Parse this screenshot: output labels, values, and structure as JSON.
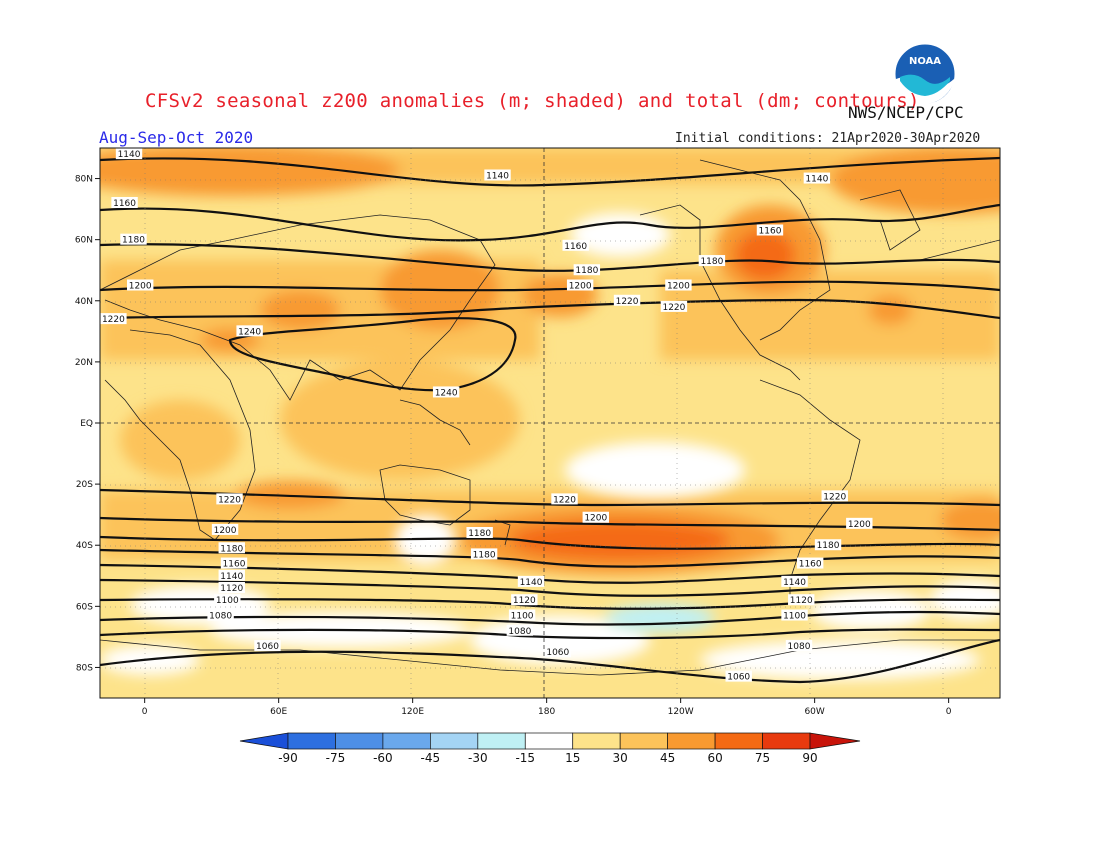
{
  "header": {
    "title": "CFSv2 seasonal z200 anomalies (m; shaded) and total (dm; contours)",
    "agency": "NWS/NCEP/CPC",
    "season": "Aug-Sep-Oct 2020",
    "initial_conditions": "Initial conditions: 21Apr2020-30Apr2020",
    "logo_text": "NOAA"
  },
  "axes": {
    "lat_labels": [
      "80N",
      "60N",
      "40N",
      "20N",
      "EQ",
      "20S",
      "40S",
      "60S",
      "80S"
    ],
    "lon_labels": [
      "0",
      "60E",
      "120E",
      "180",
      "120W",
      "60W",
      "0"
    ]
  },
  "colorbar": {
    "ticks": [
      "-90",
      "-75",
      "-60",
      "-45",
      "-30",
      "-15",
      "15",
      "30",
      "45",
      "60",
      "75",
      "90"
    ],
    "colors": [
      "#1a4fd8",
      "#2d6fe0",
      "#4e8fe6",
      "#6aa8ec",
      "#a4d4f4",
      "#bff0f4",
      "#ffffff",
      "#fde38a",
      "#fcc35a",
      "#f89a30",
      "#f46a14",
      "#e83a0e",
      "#c8140a"
    ]
  },
  "contours": [
    {
      "label": "1140",
      "positions": [
        {
          "lon": -7,
          "lat": 88
        },
        {
          "lon": 158,
          "lat": 81
        },
        {
          "lon": -59,
          "lat": 80
        }
      ]
    },
    {
      "label": "1160",
      "positions": [
        {
          "lon": -9,
          "lat": 72
        },
        {
          "lon": -167,
          "lat": 58
        },
        {
          "lon": -80,
          "lat": 63
        }
      ]
    },
    {
      "label": "1180",
      "positions": [
        {
          "lon": -5,
          "lat": 60
        },
        {
          "lon": -162,
          "lat": 50
        },
        {
          "lon": -106,
          "lat": 53
        }
      ]
    },
    {
      "label": "1200",
      "positions": [
        {
          "lon": -2,
          "lat": 45
        },
        {
          "lon": -165,
          "lat": 45
        },
        {
          "lon": -121,
          "lat": 45
        }
      ]
    },
    {
      "label": "1220",
      "positions": [
        {
          "lon": -14,
          "lat": 34
        },
        {
          "lon": -144,
          "lat": 40
        },
        {
          "lon": -123,
          "lat": 38
        }
      ]
    },
    {
      "label": "1240",
      "positions": [
        {
          "lon": 47,
          "lat": 30
        },
        {
          "lon": 135,
          "lat": 10
        }
      ]
    },
    {
      "label": "1220",
      "positions": [
        {
          "lon": 38,
          "lat": -25
        },
        {
          "lon": -172,
          "lat": -25
        },
        {
          "lon": -51,
          "lat": -24
        }
      ]
    },
    {
      "label": "1200",
      "positions": [
        {
          "lon": 36,
          "lat": -35
        },
        {
          "lon": -158,
          "lat": -31
        },
        {
          "lon": -40,
          "lat": -33
        }
      ]
    },
    {
      "label": "1180",
      "positions": [
        {
          "lon": 39,
          "lat": -41
        },
        {
          "lon": 150,
          "lat": -36
        },
        {
          "lon": -54,
          "lat": -40
        }
      ]
    },
    {
      "label": "1180",
      "positions": [
        {
          "lon": 152,
          "lat": -43
        }
      ]
    },
    {
      "label": "1160",
      "positions": [
        {
          "lon": 40,
          "lat": -46
        },
        {
          "lon": -62,
          "lat": -46
        }
      ]
    },
    {
      "label": "1140",
      "positions": [
        {
          "lon": 39,
          "lat": -50
        },
        {
          "lon": 173,
          "lat": -52
        },
        {
          "lon": -69,
          "lat": -52
        }
      ]
    },
    {
      "label": "1120",
      "positions": [
        {
          "lon": 39,
          "lat": -54
        },
        {
          "lon": 170,
          "lat": -58
        },
        {
          "lon": -66,
          "lat": -58
        }
      ]
    },
    {
      "label": "1100",
      "positions": [
        {
          "lon": 37,
          "lat": -58
        },
        {
          "lon": 169,
          "lat": -63
        },
        {
          "lon": -69,
          "lat": -63
        }
      ]
    },
    {
      "label": "1080",
      "positions": [
        {
          "lon": 34,
          "lat": -63
        },
        {
          "lon": 168,
          "lat": -68
        },
        {
          "lon": -67,
          "lat": -73
        }
      ]
    },
    {
      "label": "1060",
      "positions": [
        {
          "lon": 55,
          "lat": -73
        },
        {
          "lon": -175,
          "lat": -75
        },
        {
          "lon": -94,
          "lat": -83
        }
      ]
    }
  ]
}
